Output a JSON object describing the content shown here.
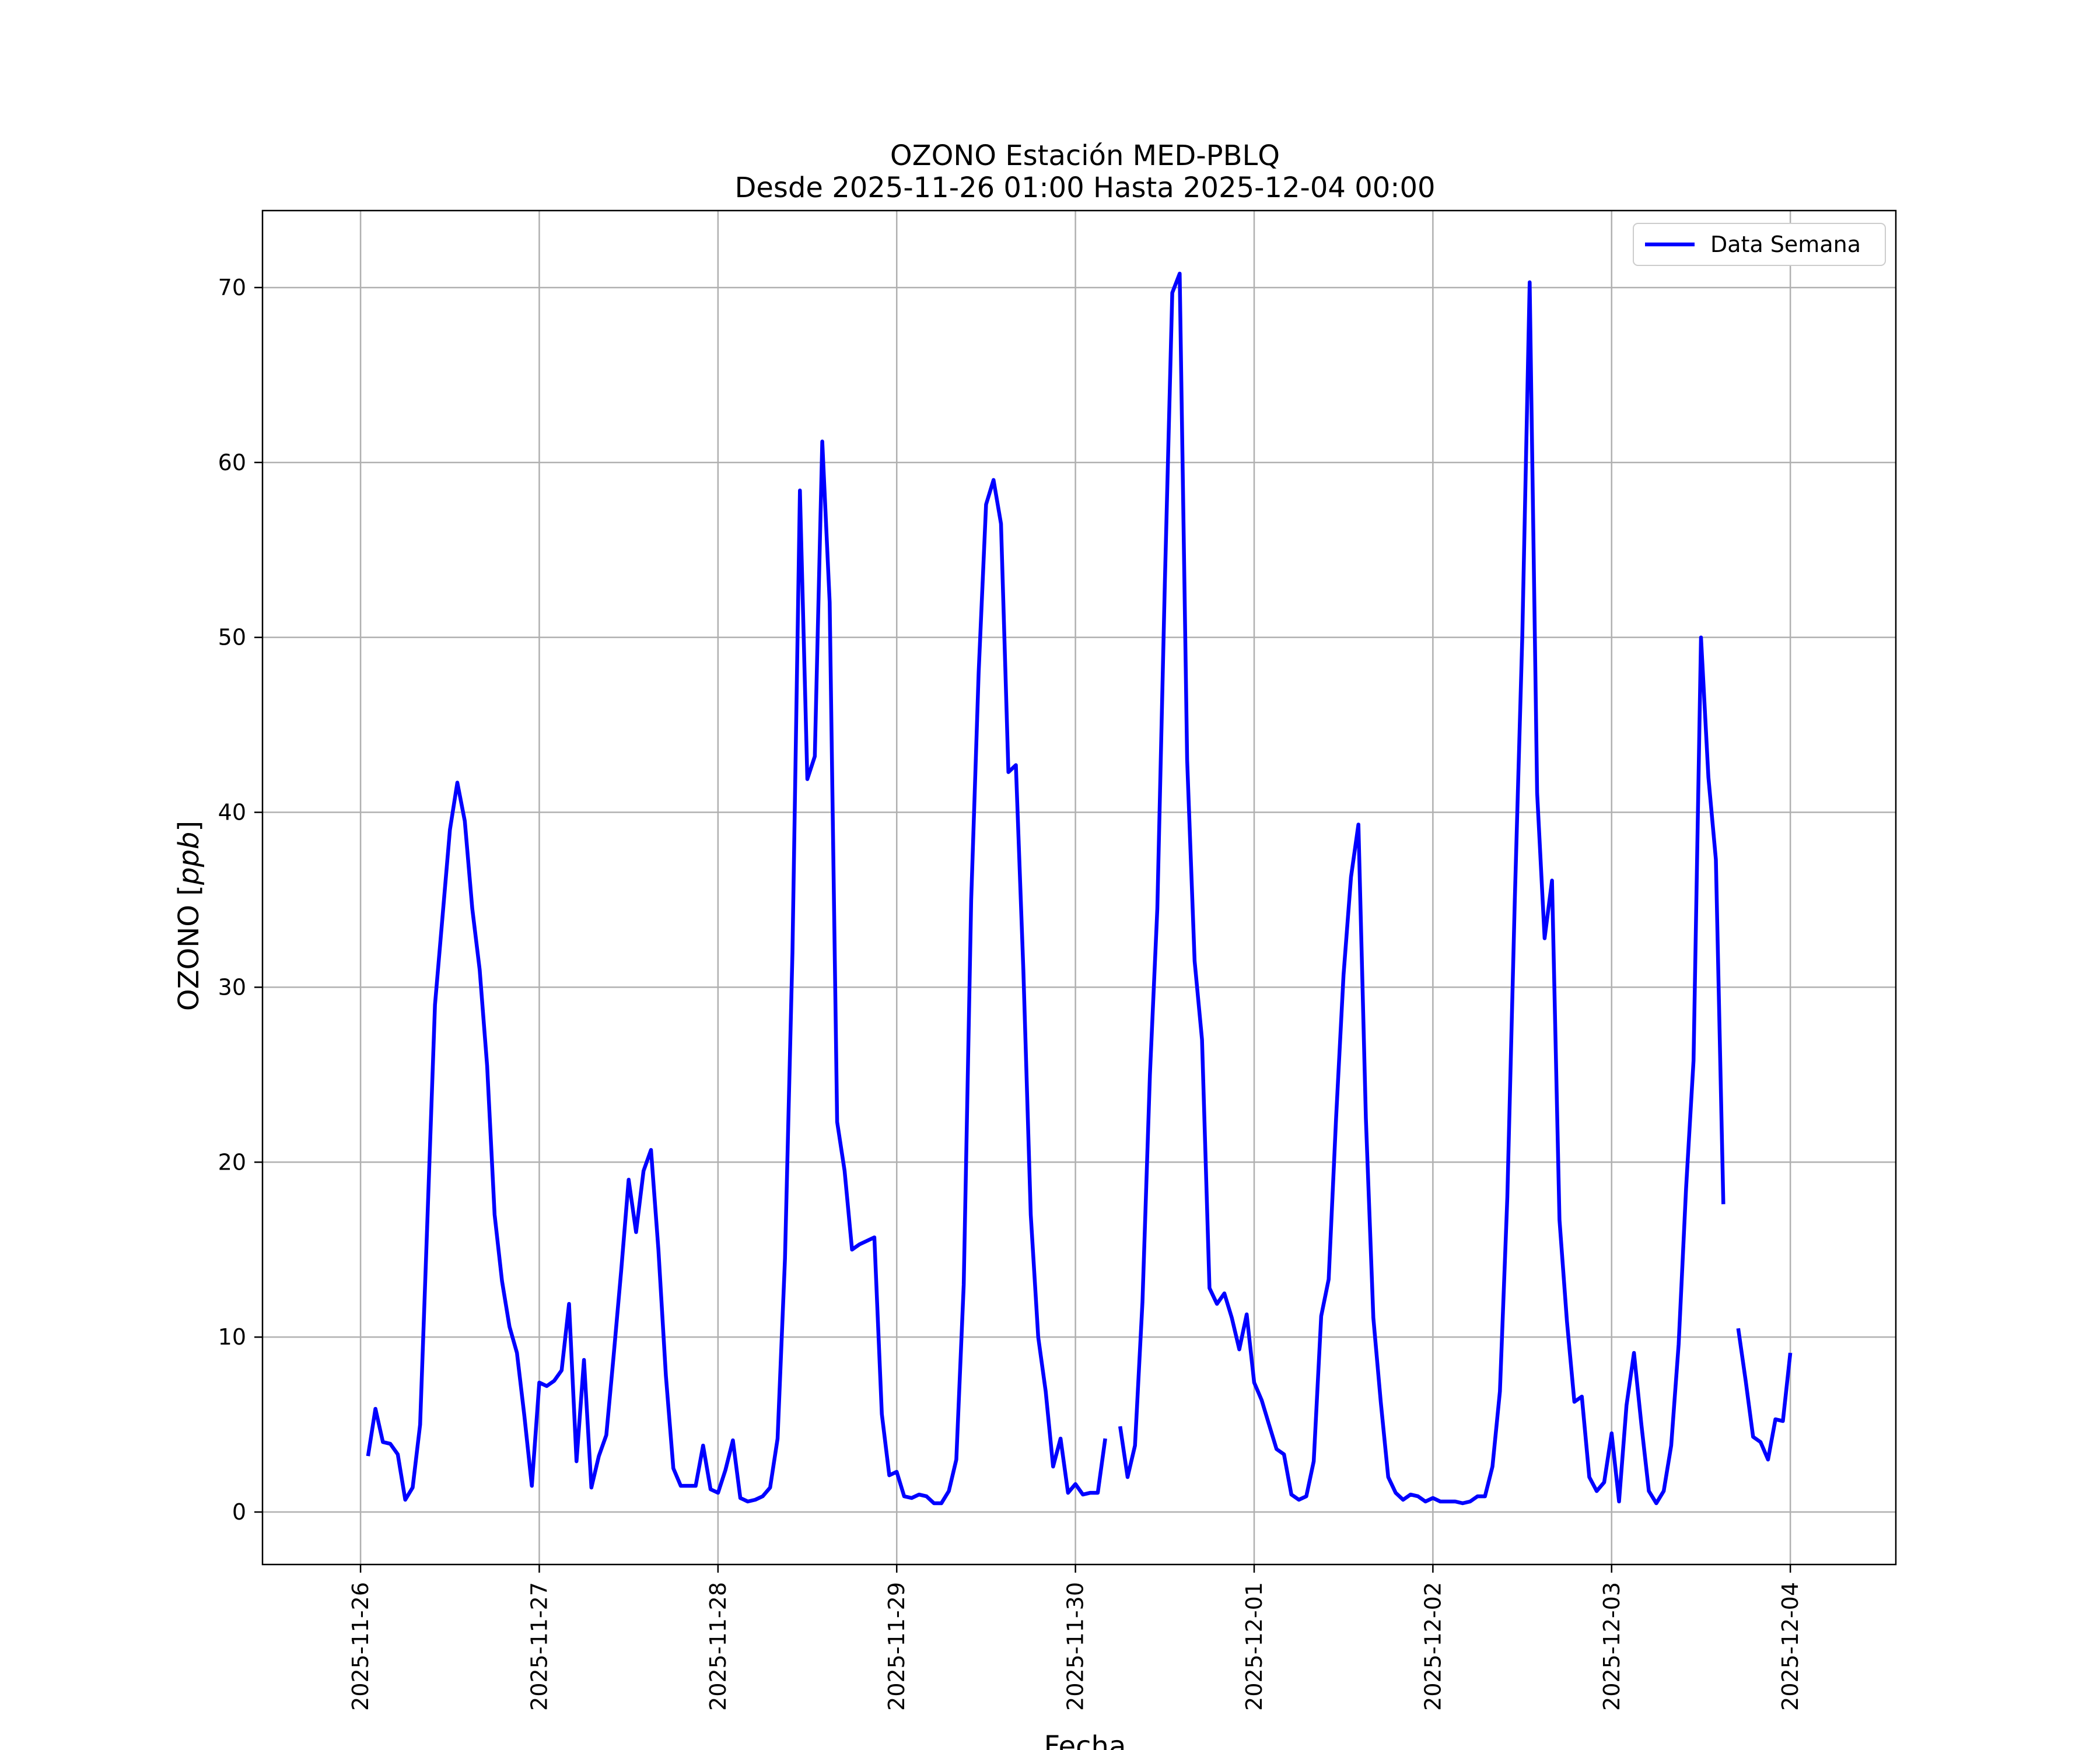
{
  "chart_data": {
    "type": "line",
    "title": "OZONO Estación MED-PBLQ",
    "subtitle": "Desde 2025-11-26 01:00 Hasta 2025-12-04 00:00",
    "xlabel": "Fecha",
    "ylabel_prefix": "OZONO [",
    "ylabel_unit": "ppb",
    "ylabel_suffix": "]",
    "x_ticks": [
      "2025-11-26",
      "2025-11-27",
      "2025-11-28",
      "2025-11-29",
      "2025-11-30",
      "2025-12-01",
      "2025-12-02",
      "2025-12-03",
      "2025-12-04"
    ],
    "y_ticks": [
      0,
      10,
      20,
      30,
      40,
      50,
      60,
      70
    ],
    "xlim": [
      "2025-11-25 10:50",
      "2025-12-04 14:10"
    ],
    "ylim": [
      -3,
      74.4
    ],
    "grid": true,
    "legend_position": "upper right",
    "colors": {
      "series": "#0000ff",
      "grid": "#b0b0b0",
      "axes": "#000000"
    },
    "series": [
      {
        "name": "Data Semana",
        "points": [
          [
            "2025-11-26 01:00",
            3.2
          ],
          [
            "2025-11-26 02:00",
            5.9
          ],
          [
            "2025-11-26 03:00",
            4.0
          ],
          [
            "2025-11-26 04:00",
            3.9
          ],
          [
            "2025-11-26 05:00",
            3.3
          ],
          [
            "2025-11-26 06:00",
            0.7
          ],
          [
            "2025-11-26 07:00",
            1.4
          ],
          [
            "2025-11-26 08:00",
            5.0
          ],
          [
            "2025-11-26 09:00",
            17.0
          ],
          [
            "2025-11-26 10:00",
            29.0
          ],
          [
            "2025-11-26 11:00",
            34.0
          ],
          [
            "2025-11-26 12:00",
            39.0
          ],
          [
            "2025-11-26 13:00",
            41.7
          ],
          [
            "2025-11-26 14:00",
            39.5
          ],
          [
            "2025-11-26 15:00",
            34.5
          ],
          [
            "2025-11-26 16:00",
            31.0
          ],
          [
            "2025-11-26 17:00",
            25.5
          ],
          [
            "2025-11-26 18:00",
            17.0
          ],
          [
            "2025-11-26 19:00",
            13.2
          ],
          [
            "2025-11-26 20:00",
            10.6
          ],
          [
            "2025-11-26 21:00",
            9.1
          ],
          [
            "2025-11-26 22:00",
            5.5
          ],
          [
            "2025-11-26 23:00",
            1.5
          ],
          [
            "2025-11-27 00:00",
            7.4
          ],
          [
            "2025-11-27 01:00",
            7.2
          ],
          [
            "2025-11-27 02:00",
            7.5
          ],
          [
            "2025-11-27 03:00",
            8.1
          ],
          [
            "2025-11-27 04:00",
            11.9
          ],
          [
            "2025-11-27 05:00",
            2.9
          ],
          [
            "2025-11-27 06:00",
            8.7
          ],
          [
            "2025-11-27 07:00",
            1.4
          ],
          [
            "2025-11-27 08:00",
            3.2
          ],
          [
            "2025-11-27 09:00",
            4.4
          ],
          [
            "2025-11-27 10:00",
            9.0
          ],
          [
            "2025-11-27 11:00",
            13.8
          ],
          [
            "2025-11-27 12:00",
            19.0
          ],
          [
            "2025-11-27 13:00",
            16.0
          ],
          [
            "2025-11-27 14:00",
            19.5
          ],
          [
            "2025-11-27 15:00",
            20.7
          ],
          [
            "2025-11-27 16:00",
            15.0
          ],
          [
            "2025-11-27 17:00",
            7.8
          ],
          [
            "2025-11-27 18:00",
            2.5
          ],
          [
            "2025-11-27 19:00",
            1.5
          ],
          [
            "2025-11-27 20:00",
            1.5
          ],
          [
            "2025-11-27 21:00",
            1.5
          ],
          [
            "2025-11-27 22:00",
            3.8
          ],
          [
            "2025-11-27 23:00",
            1.3
          ],
          [
            "2025-11-28 00:00",
            1.1
          ],
          [
            "2025-11-28 01:00",
            2.4
          ],
          [
            "2025-11-28 02:00",
            4.1
          ],
          [
            "2025-11-28 03:00",
            0.8
          ],
          [
            "2025-11-28 04:00",
            0.6
          ],
          [
            "2025-11-28 05:00",
            0.7
          ],
          [
            "2025-11-28 06:00",
            0.9
          ],
          [
            "2025-11-28 07:00",
            1.4
          ],
          [
            "2025-11-28 08:00",
            4.2
          ],
          [
            "2025-11-28 09:00",
            14.5
          ],
          [
            "2025-11-28 10:00",
            32.0
          ],
          [
            "2025-11-28 11:00",
            58.4
          ],
          [
            "2025-11-28 12:00",
            41.9
          ],
          [
            "2025-11-28 13:00",
            43.2
          ],
          [
            "2025-11-28 14:00",
            61.2
          ],
          [
            "2025-11-28 15:00",
            52.0
          ],
          [
            "2025-11-28 16:00",
            22.3
          ],
          [
            "2025-11-28 17:00",
            19.5
          ],
          [
            "2025-11-28 18:00",
            15.0
          ],
          [
            "2025-11-28 19:00",
            15.3
          ],
          [
            "2025-11-28 20:00",
            15.5
          ],
          [
            "2025-11-28 21:00",
            15.7
          ],
          [
            "2025-11-28 22:00",
            5.6
          ],
          [
            "2025-11-28 23:00",
            2.1
          ],
          [
            "2025-11-29 00:00",
            2.3
          ],
          [
            "2025-11-29 01:00",
            0.9
          ],
          [
            "2025-11-29 02:00",
            0.8
          ],
          [
            "2025-11-29 03:00",
            1.0
          ],
          [
            "2025-11-29 04:00",
            0.9
          ],
          [
            "2025-11-29 05:00",
            0.5
          ],
          [
            "2025-11-29 06:00",
            0.5
          ],
          [
            "2025-11-29 07:00",
            1.2
          ],
          [
            "2025-11-29 08:00",
            3.0
          ],
          [
            "2025-11-29 09:00",
            13.0
          ],
          [
            "2025-11-29 10:00",
            35.0
          ],
          [
            "2025-11-29 11:00",
            48.0
          ],
          [
            "2025-11-29 12:00",
            57.6
          ],
          [
            "2025-11-29 13:00",
            59.0
          ],
          [
            "2025-11-29 14:00",
            56.5
          ],
          [
            "2025-11-29 15:00",
            42.3
          ],
          [
            "2025-11-29 16:00",
            42.7
          ],
          [
            "2025-11-29 17:00",
            31.0
          ],
          [
            "2025-11-29 18:00",
            17.0
          ],
          [
            "2025-11-29 19:00",
            10.0
          ],
          [
            "2025-11-29 20:00",
            6.9
          ],
          [
            "2025-11-29 21:00",
            2.6
          ],
          [
            "2025-11-29 22:00",
            4.2
          ],
          [
            "2025-11-29 23:00",
            1.1
          ],
          [
            "2025-11-30 00:00",
            1.6
          ],
          [
            "2025-11-30 01:00",
            1.0
          ],
          [
            "2025-11-30 02:00",
            1.1
          ],
          [
            "2025-11-30 03:00",
            1.1
          ],
          [
            "2025-11-30 04:00",
            4.2
          ],
          [
            "2025-11-30 05:00",
            null
          ],
          [
            "2025-11-30 06:00",
            4.9
          ],
          [
            "2025-11-30 07:00",
            2.0
          ],
          [
            "2025-11-30 08:00",
            3.8
          ],
          [
            "2025-11-30 09:00",
            12.0
          ],
          [
            "2025-11-30 10:00",
            25.0
          ],
          [
            "2025-11-30 11:00",
            34.5
          ],
          [
            "2025-11-30 12:00",
            53.0
          ],
          [
            "2025-11-30 13:00",
            69.7
          ],
          [
            "2025-11-30 14:00",
            70.8
          ],
          [
            "2025-11-30 15:00",
            43.0
          ],
          [
            "2025-11-30 16:00",
            31.5
          ],
          [
            "2025-11-30 17:00",
            27.0
          ],
          [
            "2025-11-30 18:00",
            12.8
          ],
          [
            "2025-11-30 19:00",
            11.9
          ],
          [
            "2025-11-30 20:00",
            12.5
          ],
          [
            "2025-11-30 21:00",
            11.1
          ],
          [
            "2025-11-30 22:00",
            9.3
          ],
          [
            "2025-11-30 23:00",
            11.3
          ],
          [
            "2025-12-01 00:00",
            7.4
          ],
          [
            "2025-12-01 01:00",
            6.4
          ],
          [
            "2025-12-01 02:00",
            5.0
          ],
          [
            "2025-12-01 03:00",
            3.6
          ],
          [
            "2025-12-01 04:00",
            3.3
          ],
          [
            "2025-12-01 05:00",
            1.0
          ],
          [
            "2025-12-01 06:00",
            0.7
          ],
          [
            "2025-12-01 07:00",
            0.9
          ],
          [
            "2025-12-01 08:00",
            2.9
          ],
          [
            "2025-12-01 09:00",
            11.2
          ],
          [
            "2025-12-01 10:00",
            13.3
          ],
          [
            "2025-12-01 11:00",
            22.5
          ],
          [
            "2025-12-01 12:00",
            30.7
          ],
          [
            "2025-12-01 13:00",
            36.3
          ],
          [
            "2025-12-01 14:00",
            39.3
          ],
          [
            "2025-12-01 15:00",
            22.5
          ],
          [
            "2025-12-01 16:00",
            11.1
          ],
          [
            "2025-12-01 17:00",
            6.3
          ],
          [
            "2025-12-01 18:00",
            2.0
          ],
          [
            "2025-12-01 19:00",
            1.1
          ],
          [
            "2025-12-01 20:00",
            0.7
          ],
          [
            "2025-12-01 21:00",
            1.0
          ],
          [
            "2025-12-01 22:00",
            0.9
          ],
          [
            "2025-12-01 23:00",
            0.6
          ],
          [
            "2025-12-02 00:00",
            0.8
          ],
          [
            "2025-12-02 01:00",
            0.6
          ],
          [
            "2025-12-02 02:00",
            0.6
          ],
          [
            "2025-12-02 03:00",
            0.6
          ],
          [
            "2025-12-02 04:00",
            0.5
          ],
          [
            "2025-12-02 05:00",
            0.6
          ],
          [
            "2025-12-02 06:00",
            0.9
          ],
          [
            "2025-12-02 07:00",
            0.9
          ],
          [
            "2025-12-02 08:00",
            2.6
          ],
          [
            "2025-12-02 09:00",
            6.9
          ],
          [
            "2025-12-02 10:00",
            18.0
          ],
          [
            "2025-12-02 11:00",
            35.0
          ],
          [
            "2025-12-02 12:00",
            50.0
          ],
          [
            "2025-12-02 13:00",
            70.3
          ],
          [
            "2025-12-02 14:00",
            41.1
          ],
          [
            "2025-12-02 15:00",
            32.8
          ],
          [
            "2025-12-02 16:00",
            36.1
          ],
          [
            "2025-12-02 17:00",
            16.7
          ],
          [
            "2025-12-02 18:00",
            10.9
          ],
          [
            "2025-12-02 19:00",
            6.3
          ],
          [
            "2025-12-02 20:00",
            6.6
          ],
          [
            "2025-12-02 21:00",
            2.0
          ],
          [
            "2025-12-02 22:00",
            1.2
          ],
          [
            "2025-12-02 23:00",
            1.7
          ],
          [
            "2025-12-03 00:00",
            4.5
          ],
          [
            "2025-12-03 01:00",
            0.6
          ],
          [
            "2025-12-03 02:00",
            6.1
          ],
          [
            "2025-12-03 03:00",
            9.1
          ],
          [
            "2025-12-03 04:00",
            5.0
          ],
          [
            "2025-12-03 05:00",
            1.2
          ],
          [
            "2025-12-03 06:00",
            0.5
          ],
          [
            "2025-12-03 07:00",
            1.2
          ],
          [
            "2025-12-03 08:00",
            3.8
          ],
          [
            "2025-12-03 09:00",
            9.6
          ],
          [
            "2025-12-03 10:00",
            18.5
          ],
          [
            "2025-12-03 11:00",
            25.8
          ],
          [
            "2025-12-03 12:00",
            50.0
          ],
          [
            "2025-12-03 13:00",
            42.0
          ],
          [
            "2025-12-03 14:00",
            37.3
          ],
          [
            "2025-12-03 15:00",
            17.6
          ],
          [
            "2025-12-03 16:00",
            null
          ],
          [
            "2025-12-03 17:00",
            10.5
          ],
          [
            "2025-12-03 18:00",
            7.5
          ],
          [
            "2025-12-03 19:00",
            4.3
          ],
          [
            "2025-12-03 20:00",
            4.0
          ],
          [
            "2025-12-03 21:00",
            3.0
          ],
          [
            "2025-12-03 22:00",
            5.3
          ],
          [
            "2025-12-03 23:00",
            5.2
          ],
          [
            "2025-12-04 00:00",
            9.1
          ]
        ]
      }
    ]
  }
}
